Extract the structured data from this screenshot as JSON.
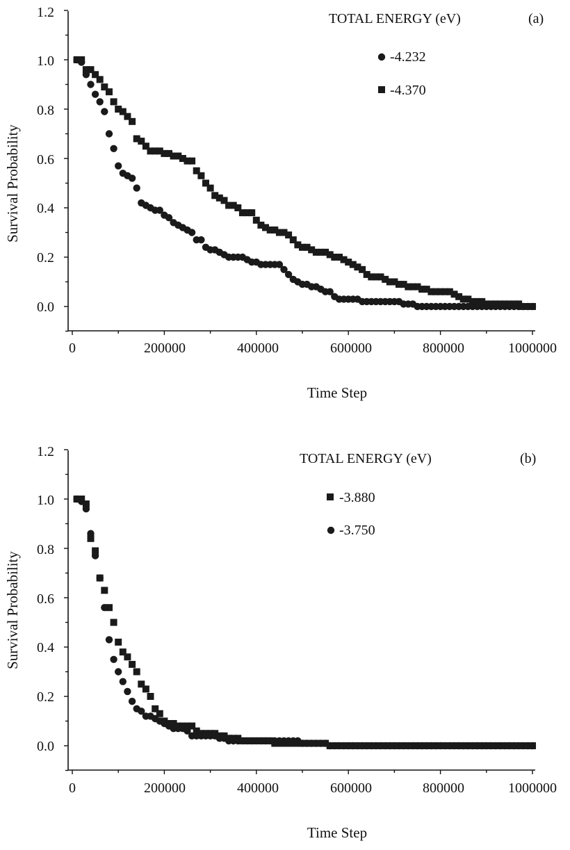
{
  "chart_data": [
    {
      "type": "scatter",
      "panel_label": "(a)",
      "legend_title": "TOTAL ENERGY (eV)",
      "xlabel": "Time Step",
      "ylabel": "Survival Probability",
      "xlim": [
        0,
        1000000
      ],
      "ylim": [
        -0.1,
        1.2
      ],
      "xticks": [
        "0",
        "200000",
        "400000",
        "600000",
        "800000",
        "1000000"
      ],
      "yticks": [
        "0.0",
        "0.2",
        "0.4",
        "0.6",
        "0.8",
        "1.0",
        "1.2"
      ],
      "legend_position": "top-right",
      "grid": false,
      "series": [
        {
          "name": "-4.232",
          "marker": "circle",
          "color": "#1a1a1a",
          "x": [
            10000,
            20000,
            30000,
            40000,
            50000,
            60000,
            70000,
            80000,
            90000,
            100000,
            110000,
            120000,
            130000,
            140000,
            150000,
            160000,
            170000,
            180000,
            190000,
            200000,
            210000,
            220000,
            230000,
            240000,
            250000,
            260000,
            270000,
            280000,
            290000,
            300000,
            310000,
            320000,
            330000,
            340000,
            350000,
            360000,
            370000,
            380000,
            390000,
            400000,
            410000,
            420000,
            430000,
            440000,
            450000,
            460000,
            470000,
            480000,
            490000,
            500000,
            510000,
            520000,
            530000,
            540000,
            550000,
            560000,
            570000,
            580000,
            590000,
            600000,
            610000,
            620000,
            630000,
            640000,
            650000,
            660000,
            670000,
            680000,
            690000,
            700000,
            710000,
            720000,
            730000,
            740000,
            750000,
            760000,
            770000,
            780000,
            790000,
            800000,
            810000,
            820000,
            830000,
            840000,
            850000,
            860000,
            870000,
            880000,
            890000,
            900000,
            910000,
            920000,
            930000,
            940000,
            950000,
            960000,
            970000,
            980000,
            990000,
            1000000
          ],
          "y": [
            1.0,
            0.99,
            0.94,
            0.9,
            0.86,
            0.83,
            0.79,
            0.7,
            0.64,
            0.57,
            0.54,
            0.53,
            0.52,
            0.48,
            0.42,
            0.41,
            0.4,
            0.39,
            0.39,
            0.37,
            0.36,
            0.34,
            0.33,
            0.32,
            0.31,
            0.3,
            0.27,
            0.27,
            0.24,
            0.23,
            0.23,
            0.22,
            0.21,
            0.2,
            0.2,
            0.2,
            0.2,
            0.19,
            0.18,
            0.18,
            0.17,
            0.17,
            0.17,
            0.17,
            0.17,
            0.15,
            0.13,
            0.11,
            0.1,
            0.09,
            0.09,
            0.08,
            0.08,
            0.07,
            0.06,
            0.06,
            0.04,
            0.03,
            0.03,
            0.03,
            0.03,
            0.03,
            0.02,
            0.02,
            0.02,
            0.02,
            0.02,
            0.02,
            0.02,
            0.02,
            0.02,
            0.01,
            0.01,
            0.01,
            0.0,
            0.0,
            0.0,
            0.0,
            0.0,
            0.0,
            0.0,
            0.0,
            0.0,
            0.0,
            0.0,
            0.0,
            0.0,
            0.0,
            0.0,
            0.0,
            0.0,
            0.0,
            0.0,
            0.0,
            0.0,
            0.0,
            0.0,
            0.0,
            0.0,
            0.0
          ]
        },
        {
          "name": "-4.370",
          "marker": "square",
          "color": "#1a1a1a",
          "x": [
            10000,
            20000,
            30000,
            40000,
            50000,
            60000,
            70000,
            80000,
            90000,
            100000,
            110000,
            120000,
            130000,
            140000,
            150000,
            160000,
            170000,
            180000,
            190000,
            200000,
            210000,
            220000,
            230000,
            240000,
            250000,
            260000,
            270000,
            280000,
            290000,
            300000,
            310000,
            320000,
            330000,
            340000,
            350000,
            360000,
            370000,
            380000,
            390000,
            400000,
            410000,
            420000,
            430000,
            440000,
            450000,
            460000,
            470000,
            480000,
            490000,
            500000,
            510000,
            520000,
            530000,
            540000,
            550000,
            560000,
            570000,
            580000,
            590000,
            600000,
            610000,
            620000,
            630000,
            640000,
            650000,
            660000,
            670000,
            680000,
            690000,
            700000,
            710000,
            720000,
            730000,
            740000,
            750000,
            760000,
            770000,
            780000,
            790000,
            800000,
            810000,
            820000,
            830000,
            840000,
            850000,
            860000,
            870000,
            880000,
            890000,
            900000,
            910000,
            920000,
            930000,
            940000,
            950000,
            960000,
            970000,
            980000,
            990000,
            1000000
          ],
          "y": [
            1.0,
            1.0,
            0.96,
            0.96,
            0.94,
            0.92,
            0.89,
            0.87,
            0.83,
            0.8,
            0.79,
            0.77,
            0.75,
            0.68,
            0.67,
            0.65,
            0.63,
            0.63,
            0.63,
            0.62,
            0.62,
            0.61,
            0.61,
            0.6,
            0.59,
            0.59,
            0.55,
            0.53,
            0.5,
            0.48,
            0.45,
            0.44,
            0.43,
            0.41,
            0.41,
            0.4,
            0.38,
            0.38,
            0.38,
            0.35,
            0.33,
            0.32,
            0.31,
            0.31,
            0.3,
            0.3,
            0.29,
            0.27,
            0.25,
            0.24,
            0.24,
            0.23,
            0.22,
            0.22,
            0.22,
            0.21,
            0.2,
            0.2,
            0.19,
            0.18,
            0.17,
            0.16,
            0.15,
            0.13,
            0.12,
            0.12,
            0.12,
            0.11,
            0.1,
            0.1,
            0.09,
            0.09,
            0.08,
            0.08,
            0.08,
            0.07,
            0.07,
            0.06,
            0.06,
            0.06,
            0.06,
            0.06,
            0.05,
            0.04,
            0.03,
            0.03,
            0.02,
            0.02,
            0.02,
            0.01,
            0.01,
            0.01,
            0.01,
            0.01,
            0.01,
            0.01,
            0.01,
            0.0,
            0.0,
            0.0
          ]
        }
      ]
    },
    {
      "type": "scatter",
      "panel_label": "(b)",
      "legend_title": "TOTAL ENERGY (eV)",
      "xlabel": "Time Step",
      "ylabel": "Survival Probability",
      "xlim": [
        0,
        1000000
      ],
      "ylim": [
        -0.1,
        1.2
      ],
      "xticks": [
        "0",
        "200000",
        "400000",
        "600000",
        "800000",
        "1000000"
      ],
      "yticks": [
        "0.0",
        "0.2",
        "0.4",
        "0.6",
        "0.8",
        "1.0",
        "1.2"
      ],
      "legend_position": "top-right",
      "grid": false,
      "series": [
        {
          "name": "-3.880",
          "marker": "square",
          "color": "#1a1a1a",
          "x": [
            10000,
            20000,
            30000,
            40000,
            50000,
            60000,
            70000,
            80000,
            90000,
            100000,
            110000,
            120000,
            130000,
            140000,
            150000,
            160000,
            170000,
            180000,
            190000,
            200000,
            210000,
            220000,
            230000,
            240000,
            250000,
            260000,
            270000,
            280000,
            290000,
            300000,
            310000,
            320000,
            330000,
            340000,
            350000,
            360000,
            370000,
            380000,
            390000,
            400000,
            410000,
            420000,
            430000,
            440000,
            450000,
            460000,
            470000,
            480000,
            490000,
            500000,
            510000,
            520000,
            530000,
            540000,
            550000,
            560000,
            570000,
            580000,
            590000,
            600000,
            610000,
            620000,
            630000,
            640000,
            650000,
            660000,
            670000,
            680000,
            690000,
            700000,
            710000,
            720000,
            730000,
            740000,
            750000,
            760000,
            770000,
            780000,
            790000,
            800000,
            810000,
            820000,
            830000,
            840000,
            850000,
            860000,
            870000,
            880000,
            890000,
            900000,
            910000,
            920000,
            930000,
            940000,
            950000,
            960000,
            970000,
            980000,
            990000,
            1000000
          ],
          "y": [
            1.0,
            1.0,
            0.98,
            0.84,
            0.79,
            0.68,
            0.63,
            0.56,
            0.5,
            0.42,
            0.38,
            0.36,
            0.33,
            0.3,
            0.25,
            0.23,
            0.2,
            0.15,
            0.13,
            0.1,
            0.09,
            0.09,
            0.08,
            0.08,
            0.08,
            0.08,
            0.06,
            0.05,
            0.05,
            0.05,
            0.05,
            0.04,
            0.04,
            0.03,
            0.03,
            0.03,
            0.02,
            0.02,
            0.02,
            0.02,
            0.02,
            0.02,
            0.02,
            0.01,
            0.01,
            0.01,
            0.01,
            0.01,
            0.01,
            0.01,
            0.01,
            0.01,
            0.01,
            0.01,
            0.01,
            0.0,
            0.0,
            0.0,
            0.0,
            0.0,
            0.0,
            0.0,
            0.0,
            0.0,
            0.0,
            0.0,
            0.0,
            0.0,
            0.0,
            0.0,
            0.0,
            0.0,
            0.0,
            0.0,
            0.0,
            0.0,
            0.0,
            0.0,
            0.0,
            0.0,
            0.0,
            0.0,
            0.0,
            0.0,
            0.0,
            0.0,
            0.0,
            0.0,
            0.0,
            0.0,
            0.0,
            0.0,
            0.0,
            0.0,
            0.0,
            0.0,
            0.0,
            0.0,
            0.0,
            0.0
          ]
        },
        {
          "name": "-3.750",
          "marker": "circle",
          "color": "#1a1a1a",
          "x": [
            10000,
            20000,
            30000,
            40000,
            50000,
            60000,
            70000,
            80000,
            90000,
            100000,
            110000,
            120000,
            130000,
            140000,
            150000,
            160000,
            170000,
            180000,
            190000,
            200000,
            210000,
            220000,
            230000,
            240000,
            250000,
            260000,
            270000,
            280000,
            290000,
            300000,
            310000,
            320000,
            330000,
            340000,
            350000,
            360000,
            370000,
            380000,
            390000,
            400000,
            410000,
            420000,
            430000,
            440000,
            450000,
            460000,
            470000,
            480000,
            490000,
            500000,
            510000,
            520000,
            530000,
            540000,
            550000,
            560000,
            570000,
            580000,
            590000,
            600000,
            610000,
            620000,
            630000,
            640000,
            650000,
            660000,
            670000,
            680000,
            690000,
            700000,
            710000,
            720000,
            730000,
            740000,
            750000,
            760000,
            770000,
            780000,
            790000,
            800000,
            810000,
            820000,
            830000,
            840000,
            850000,
            860000,
            870000,
            880000,
            890000,
            900000,
            910000,
            920000,
            930000,
            940000,
            950000,
            960000,
            970000,
            980000,
            990000,
            1000000
          ],
          "y": [
            1.0,
            0.99,
            0.96,
            0.86,
            0.77,
            0.68,
            0.56,
            0.43,
            0.35,
            0.3,
            0.26,
            0.22,
            0.18,
            0.15,
            0.14,
            0.12,
            0.12,
            0.11,
            0.1,
            0.09,
            0.08,
            0.07,
            0.07,
            0.07,
            0.06,
            0.04,
            0.04,
            0.04,
            0.04,
            0.04,
            0.04,
            0.03,
            0.03,
            0.02,
            0.02,
            0.02,
            0.02,
            0.02,
            0.02,
            0.02,
            0.02,
            0.02,
            0.02,
            0.02,
            0.02,
            0.02,
            0.02,
            0.02,
            0.02,
            0.01,
            0.01,
            0.01,
            0.01,
            0.01,
            0.01,
            0.0,
            0.0,
            0.0,
            0.0,
            0.0,
            0.0,
            0.0,
            0.0,
            0.0,
            0.0,
            0.0,
            0.0,
            0.0,
            0.0,
            0.0,
            0.0,
            0.0,
            0.0,
            0.0,
            0.0,
            0.0,
            0.0,
            0.0,
            0.0,
            0.0,
            0.0,
            0.0,
            0.0,
            0.0,
            0.0,
            0.0,
            0.0,
            0.0,
            0.0,
            0.0,
            0.0,
            0.0,
            0.0,
            0.0,
            0.0,
            0.0,
            0.0,
            0.0,
            0.0,
            0.0
          ]
        }
      ]
    }
  ]
}
